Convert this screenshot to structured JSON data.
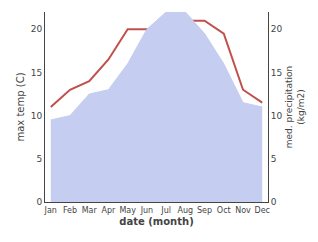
{
  "chart_data": {
    "type": "line",
    "categories": [
      "Jan",
      "Feb",
      "Mar",
      "Apr",
      "May",
      "Jun",
      "Jul",
      "Aug",
      "Sep",
      "Oct",
      "Nov",
      "Dec"
    ],
    "xlabel": "date (month)",
    "ylabel": "max temp (C)",
    "y2label": "med. precipitation\n(kg/m2)",
    "series": [
      {
        "type": "area",
        "color": "#c5cdf0",
        "axis": "y2",
        "values": [
          9.5,
          10,
          12.5,
          13,
          16,
          20,
          22,
          22,
          19.5,
          16,
          11.5,
          11
        ]
      },
      {
        "type": "line",
        "color": "#c0504d",
        "values": [
          11,
          13,
          14,
          16.5,
          20,
          20,
          18.5,
          21,
          21,
          19.5,
          13,
          11.5
        ]
      }
    ],
    "ylim": [
      0,
      22
    ],
    "yticks": [
      0,
      5,
      10,
      15,
      20
    ],
    "y2lim": [
      0,
      22
    ],
    "y2ticks": [
      0,
      5,
      10,
      15,
      20
    ],
    "grid": false
  }
}
